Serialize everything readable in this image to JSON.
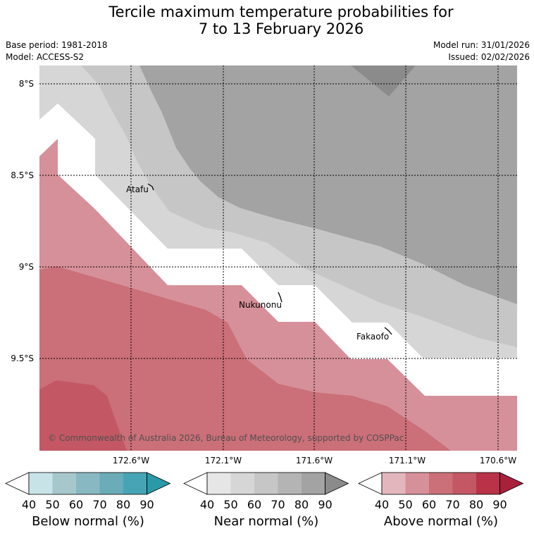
{
  "title_line1": "Tercile maximum temperature probabilities for",
  "title_line2": "7 to 13 February 2026",
  "base_period": "Base period: 1981-2018",
  "model": "Model: ACCESS-S2",
  "model_run": "Model run: 31/01/2026",
  "issued": "Issued: 02/02/2026",
  "map": {
    "lat_labels": [
      "8°S",
      "8.5°S",
      "9°S",
      "9.5°S"
    ],
    "lon_labels": [
      "172.6°W",
      "172.1°W",
      "171.6°W",
      "171.1°W",
      "170.6°W"
    ],
    "places": [
      "Atafu",
      "Nukunonu",
      "Fakaofo"
    ],
    "copyright": "© Commonwealth of Australia 2026, Bureau of Meteorology, supported by COSPPac"
  },
  "colorbars": [
    {
      "title": "Below normal (%)",
      "ticks": [
        "40",
        "50",
        "60",
        "70",
        "80",
        "90"
      ],
      "colors": [
        "#ffffff",
        "#c8e3e8",
        "#a6c8cd",
        "#88b8c2",
        "#6aacb8",
        "#47a4b4",
        "#2a9aa8"
      ]
    },
    {
      "title": "Near normal (%)",
      "ticks": [
        "40",
        "50",
        "60",
        "70",
        "80",
        "90"
      ],
      "colors": [
        "#ffffff",
        "#e6e6e6",
        "#d6d6d6",
        "#c6c6c6",
        "#b4b4b4",
        "#a3a3a3",
        "#8b8b8b"
      ]
    },
    {
      "title": "Above normal (%)",
      "ticks": [
        "40",
        "50",
        "60",
        "70",
        "80",
        "90"
      ],
      "colors": [
        "#ffffff",
        "#e3b6bd",
        "#d69099",
        "#cb6f78",
        "#c35864",
        "#b93247",
        "#a8203a"
      ]
    }
  ]
}
